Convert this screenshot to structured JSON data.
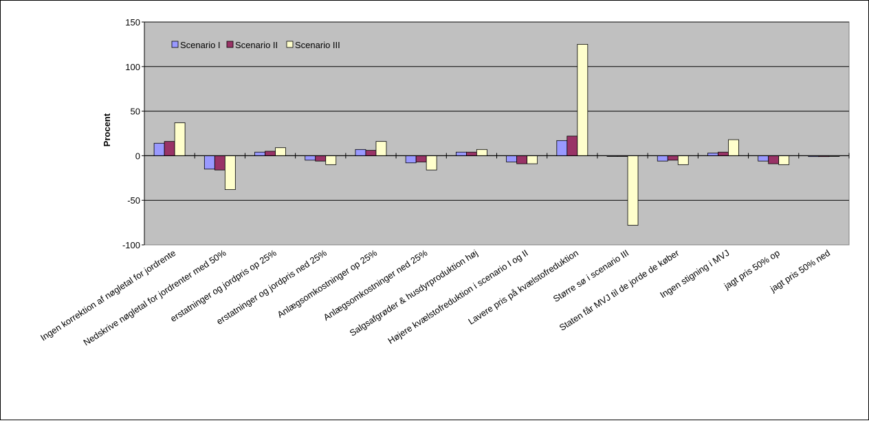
{
  "chart_data": {
    "type": "bar",
    "title": "",
    "xlabel": "",
    "ylabel": "Procent",
    "ylim": [
      -100,
      150
    ],
    "yticks": [
      "150",
      "100",
      "50",
      "0",
      "-50",
      "-100"
    ],
    "grid": true,
    "legend_position": "top-left",
    "categories": [
      "Ingen korrektion af nøgletal for jordrente",
      "Nedskrive nøgletal for jordrenter med 50%",
      "erstatninger og jordpris op 25%",
      "erstatninger og jordpris ned 25%",
      "Anlægsomkostninger op 25%",
      "Anlægsomkostninger ned 25%",
      "Salgsafgrøder & husdyrproduktion høj",
      "Højere kvælstofreduktion i scenario I og II",
      "Lavere pris på kvælstofreduktion",
      "Større sø i scenario III",
      "Staten får MVJ til de jorde de køber",
      "Ingen stigning i MVJ",
      "jagt pris 50% op",
      "jagt pris 50% ned"
    ],
    "series": [
      {
        "name": "Scenario I",
        "color": "#9999ff",
        "values": [
          14,
          -15,
          4,
          -5,
          7,
          -8,
          4,
          -7,
          17,
          0,
          -6,
          3,
          -6,
          -1
        ]
      },
      {
        "name": "Scenario II",
        "color": "#993366",
        "values": [
          16,
          -16,
          5,
          -6,
          6,
          -7,
          4,
          -9,
          22,
          0,
          -5,
          4,
          -9,
          -1
        ]
      },
      {
        "name": "Scenario III",
        "color": "#ffffcc",
        "values": [
          37,
          -38,
          9,
          -10,
          16,
          -16,
          7,
          -9,
          125,
          -78,
          -10,
          18,
          -10,
          0
        ]
      }
    ]
  },
  "colors": {
    "plot_background": "#c0c0c0",
    "gridline": "#000000"
  }
}
